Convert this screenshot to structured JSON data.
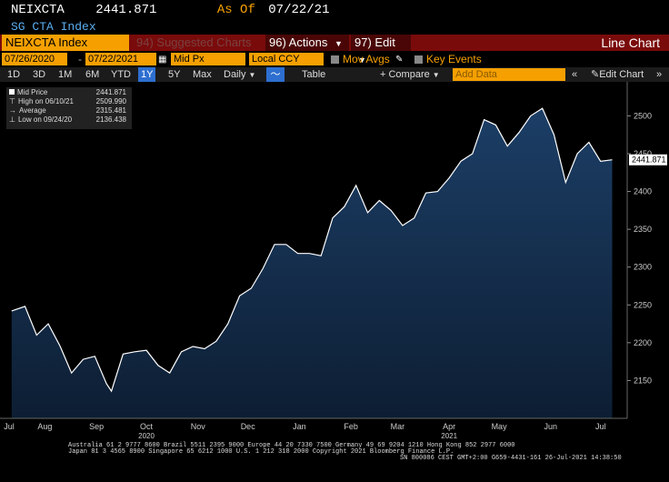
{
  "header": {
    "ticker": "NEIXCTA",
    "price": "2441.871",
    "as_of_label": "As Of",
    "as_of_date": "07/22/21",
    "index_name": "SG CTA Index"
  },
  "menubar": {
    "security": "NEIXCTA Index",
    "suggested": "94) Suggested Charts",
    "actions": "96) Actions",
    "edit": "97) Edit",
    "chart_type": "Line Chart"
  },
  "controls": {
    "start_date": "07/26/2020",
    "end_date": "07/22/2021",
    "field": "Mid Px",
    "currency": "Local CCY",
    "mov_avgs": "Mov Avgs",
    "key_events": "Key Events"
  },
  "toolbar": {
    "periods": [
      "1D",
      "3D",
      "1M",
      "6M",
      "YTD",
      "1Y",
      "5Y",
      "Max"
    ],
    "selected_period": "1Y",
    "frequency": "Daily",
    "table": "Table",
    "compare": "Compare",
    "add_data_placeholder": "Add Data",
    "edit_chart": "Edit Chart"
  },
  "legend": {
    "items": [
      {
        "label": "Mid Price",
        "value": "2441.871"
      },
      {
        "label": "High on 06/10/21",
        "value": "2509.990"
      },
      {
        "label": "Average",
        "value": "2315.481"
      },
      {
        "label": "Low on 09/24/20",
        "value": "2136.438"
      }
    ]
  },
  "colors": {
    "line": "#ffffff",
    "fill_top": "#1c3e66",
    "fill_bottom": "#0d1e33",
    "accent_orange": "#f5a000",
    "menu_red": "#7a0b0b",
    "selected_blue": "#2d6fd0"
  },
  "chart_data": {
    "type": "area",
    "x": [
      "2020-07-26",
      "2020-08-03",
      "2020-08-10",
      "2020-08-17",
      "2020-08-24",
      "2020-08-31",
      "2020-09-07",
      "2020-09-14",
      "2020-09-21",
      "2020-09-24",
      "2020-10-01",
      "2020-10-08",
      "2020-10-15",
      "2020-10-22",
      "2020-10-29",
      "2020-11-05",
      "2020-11-12",
      "2020-11-19",
      "2020-11-26",
      "2020-12-03",
      "2020-12-10",
      "2020-12-17",
      "2020-12-24",
      "2020-12-31",
      "2021-01-07",
      "2021-01-14",
      "2021-01-21",
      "2021-01-28",
      "2021-02-04",
      "2021-02-11",
      "2021-02-18",
      "2021-02-25",
      "2021-03-04",
      "2021-03-11",
      "2021-03-18",
      "2021-03-25",
      "2021-04-01",
      "2021-04-08",
      "2021-04-15",
      "2021-04-22",
      "2021-04-29",
      "2021-05-06",
      "2021-05-13",
      "2021-05-20",
      "2021-05-27",
      "2021-06-03",
      "2021-06-10",
      "2021-06-17",
      "2021-06-24",
      "2021-07-01",
      "2021-07-08",
      "2021-07-15",
      "2021-07-22"
    ],
    "values": [
      2242,
      2248,
      2210,
      2225,
      2196,
      2160,
      2178,
      2182,
      2146,
      2136,
      2185,
      2188,
      2190,
      2170,
      2160,
      2188,
      2195,
      2192,
      2202,
      2225,
      2262,
      2272,
      2298,
      2330,
      2330,
      2318,
      2318,
      2315,
      2365,
      2380,
      2408,
      2372,
      2388,
      2375,
      2355,
      2365,
      2398,
      2400,
      2418,
      2440,
      2450,
      2495,
      2488,
      2460,
      2478,
      2500,
      2510,
      2475,
      2412,
      2450,
      2465,
      2440,
      2441.871
    ],
    "x_tick_labels": [
      "Jul",
      "Aug",
      "Sep",
      "Oct",
      "Nov",
      "Dec",
      "Jan",
      "Feb",
      "Mar",
      "Apr",
      "May",
      "Jun",
      "Jul"
    ],
    "year_labels": [
      "2020",
      "2021"
    ],
    "y_ticks": [
      2150,
      2200,
      2250,
      2300,
      2350,
      2400,
      2450,
      2500
    ],
    "ylim": [
      2100,
      2545
    ],
    "last_value_label": "2441.871",
    "grid": false
  },
  "footer": {
    "line1": "Australia 61 2 9777 8600 Brazil 5511 2395 9000 Europe 44 20 7330 7500 Germany 49 69 9204 1210 Hong Kong 852 2977 6000",
    "line2": "Japan 81 3 4565 8900        Singapore 65 6212 1000        U.S. 1 212 318 2000            Copyright 2021 Bloomberg Finance L.P.",
    "line3": "SN 800086 CEST GMT+2:00 G659-4431-161 26-Jul-2021 14:38:50"
  }
}
